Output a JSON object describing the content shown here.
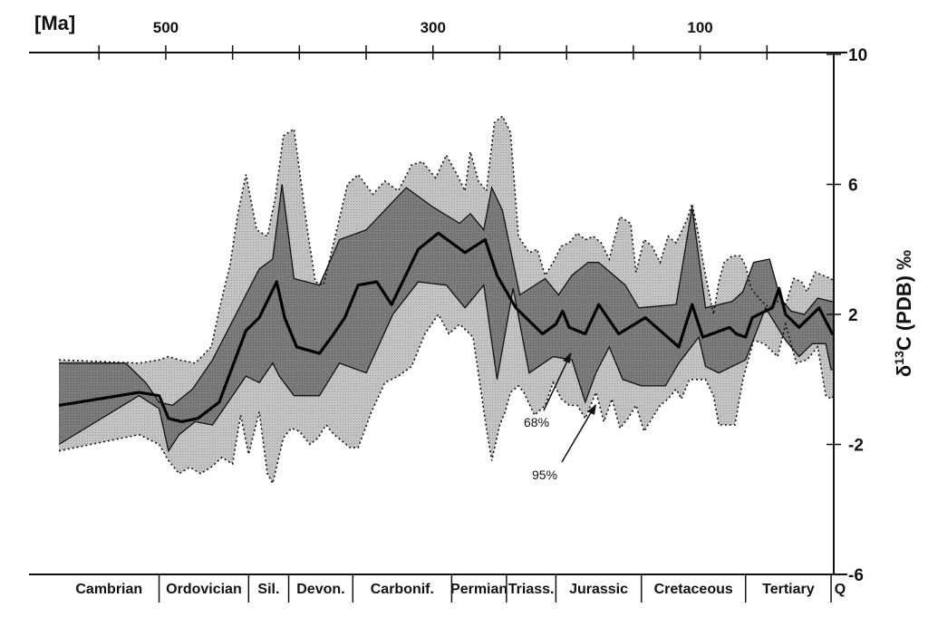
{
  "chart_data": {
    "type": "area",
    "top_axis": {
      "unit_label": "[Ma]",
      "ticks": [
        "500",
        "300",
        "100"
      ],
      "tick_values": [
        500,
        300,
        100
      ],
      "xlim": [
        580,
        0
      ]
    },
    "ylabel": "δ13C (PDB) ‰",
    "ylabel_parts": {
      "delta": "δ",
      "sup": "13",
      "rest": "C (PDB) ‰"
    },
    "y_ticks": [
      "10",
      "6",
      "2",
      "-2",
      "-6"
    ],
    "y_tick_values": [
      10,
      6,
      2,
      -2,
      -6
    ],
    "ylim": [
      -6,
      10
    ],
    "grid": false,
    "periods": [
      {
        "label": "Cambrian",
        "start": 580,
        "end": 505
      },
      {
        "label": "Ordovician",
        "start": 505,
        "end": 438
      },
      {
        "label": "Sil.",
        "start": 438,
        "end": 408
      },
      {
        "label": "Devon.",
        "start": 408,
        "end": 360
      },
      {
        "label": "Carbonif.",
        "start": 360,
        "end": 286
      },
      {
        "label": "Permian",
        "start": 286,
        "end": 245
      },
      {
        "label": "Triass.",
        "start": 245,
        "end": 208
      },
      {
        "label": "Jurassic",
        "start": 208,
        "end": 144
      },
      {
        "label": "Cretaceous",
        "start": 144,
        "end": 66
      },
      {
        "label": "Tertiary",
        "start": 66,
        "end": 2
      },
      {
        "label": "Q",
        "start": 2,
        "end": 0
      }
    ],
    "annotations": [
      {
        "text": "68%",
        "x": 222,
        "y": -1.0
      },
      {
        "text": "95%",
        "x": 210,
        "y": -2.0
      }
    ],
    "series": [
      {
        "x": [
          580,
          520,
          505,
          498,
          488,
          476,
          460,
          440,
          430,
          417,
          411,
          402,
          385,
          376,
          366,
          356,
          342,
          331,
          311,
          296,
          276,
          261,
          252,
          238,
          218,
          208,
          203,
          198,
          186,
          176,
          161,
          141,
          116,
          106,
          98,
          78,
          73,
          66,
          61,
          46,
          41,
          36,
          26,
          21,
          11,
          1,
          0
        ],
        "values": [
          -0.8,
          -0.4,
          -0.5,
          -1.2,
          -1.3,
          -1.2,
          -0.7,
          1.5,
          1.9,
          3.0,
          1.9,
          1.0,
          0.8,
          1.3,
          1.9,
          2.9,
          3.0,
          2.3,
          4.0,
          4.5,
          3.9,
          4.3,
          3.2,
          2.2,
          1.4,
          1.7,
          2.1,
          1.6,
          1.4,
          2.3,
          1.4,
          1.9,
          1.0,
          2.3,
          1.3,
          1.6,
          1.4,
          1.3,
          1.9,
          2.2,
          2.8,
          2.0,
          1.6,
          1.8,
          2.2,
          1.4,
          1.4
        ]
      },
      {
        "x": [
          580,
          530,
          515,
          505,
          495,
          480,
          465,
          445,
          430,
          420,
          413,
          404,
          385,
          370,
          350,
          320,
          300,
          280,
          272,
          262,
          256,
          248,
          235,
          216,
          206,
          196,
          184,
          176,
          156,
          146,
          118,
          106,
          96,
          76,
          68,
          60,
          48,
          40,
          32,
          22,
          12,
          2,
          0
        ],
        "values": [
          0.5,
          0.5,
          -0.1,
          -0.7,
          -0.8,
          -0.3,
          0.6,
          2.2,
          3.4,
          3.7,
          6.0,
          3.1,
          2.9,
          4.3,
          4.6,
          5.9,
          5.3,
          4.8,
          5.1,
          4.6,
          5.9,
          5.2,
          2.6,
          3.1,
          2.6,
          3.2,
          3.6,
          3.6,
          2.9,
          2.2,
          2.3,
          5.3,
          2.2,
          2.4,
          2.7,
          3.6,
          3.7,
          2.5,
          2.1,
          2.0,
          2.5,
          2.4,
          2.4
        ]
      },
      {
        "x": [
          580,
          520,
          505,
          498,
          490,
          478,
          465,
          450,
          440,
          430,
          420,
          415,
          404,
          385,
          370,
          350,
          330,
          311,
          290,
          276,
          262,
          252,
          240,
          228,
          210,
          196,
          186,
          178,
          168,
          158,
          144,
          126,
          116,
          101,
          96,
          86,
          66,
          51,
          36,
          26,
          16,
          6,
          2,
          0
        ],
        "values": [
          -2.0,
          -0.5,
          -0.9,
          -2.2,
          -1.7,
          -1.3,
          -1.4,
          -0.5,
          0.1,
          -0.1,
          0.5,
          0.1,
          -0.5,
          -0.5,
          0.5,
          0.2,
          2.0,
          3.0,
          2.9,
          2.2,
          2.9,
          0.0,
          2.8,
          0.2,
          0.7,
          0.6,
          -0.7,
          0.2,
          1.0,
          0.0,
          -0.2,
          -0.2,
          0.5,
          1.3,
          0.4,
          0.2,
          0.6,
          2.2,
          1.2,
          0.7,
          1.1,
          1.1,
          0.3,
          0.3
        ]
      },
      {
        "x": [
          580,
          520,
          505,
          498,
          490,
          478,
          466,
          458,
          452,
          446,
          440,
          432,
          424,
          418,
          412,
          404,
          394,
          388,
          382,
          372,
          364,
          356,
          345,
          336,
          326,
          316,
          308,
          298,
          290,
          282,
          276,
          272,
          266,
          260,
          254,
          248,
          242,
          236,
          228,
          222,
          216,
          210,
          204,
          198,
          192,
          186,
          180,
          174,
          168,
          160,
          152,
          148,
          142,
          136,
          130,
          124,
          118,
          110,
          106,
          102,
          96,
          90,
          86,
          82,
          76,
          70,
          66,
          62,
          54,
          48,
          42,
          36,
          30,
          24,
          20,
          14,
          8,
          2,
          0
        ],
        "values": [
          0.6,
          0.5,
          0.6,
          0.7,
          0.6,
          0.5,
          1.0,
          2.5,
          3.5,
          5.1,
          6.3,
          4.6,
          4.4,
          5.6,
          7.5,
          7.7,
          4.6,
          3.0,
          2.9,
          4.6,
          6.0,
          6.3,
          5.7,
          6.1,
          5.8,
          6.6,
          6.7,
          6.2,
          6.9,
          6.3,
          5.8,
          7.0,
          6.1,
          5.8,
          7.9,
          8.1,
          7.6,
          4.4,
          3.9,
          4.0,
          3.2,
          3.6,
          4.1,
          4.2,
          4.5,
          4.3,
          4.4,
          4.2,
          3.7,
          5.0,
          4.8,
          3.3,
          4.3,
          4.1,
          3.6,
          4.4,
          4.2,
          4.9,
          5.4,
          4.6,
          3.2,
          2.0,
          3.0,
          3.6,
          3.8,
          3.8,
          3.5,
          2.8,
          2.4,
          2.2,
          2.4,
          2.3,
          3.1,
          3.0,
          2.7,
          3.3,
          3.2,
          3.1,
          3.0
        ]
      },
      {
        "x": [
          580,
          520,
          505,
          498,
          490,
          482,
          474,
          466,
          458,
          450,
          444,
          438,
          430,
          424,
          420,
          412,
          406,
          400,
          392,
          386,
          380,
          374,
          368,
          362,
          356,
          346,
          336,
          326,
          316,
          306,
          296,
          288,
          280,
          270,
          260,
          256,
          250,
          246,
          242,
          236,
          232,
          224,
          216,
          210,
          204,
          198,
          192,
          186,
          178,
          172,
          166,
          160,
          154,
          148,
          142,
          136,
          130,
          124,
          118,
          114,
          108,
          102,
          96,
          90,
          86,
          80,
          74,
          68,
          60,
          52,
          42,
          36,
          28,
          20,
          12,
          6,
          2,
          0
        ],
        "values": [
          -2.2,
          -1.7,
          -2.0,
          -2.5,
          -2.9,
          -2.7,
          -2.9,
          -2.7,
          -2.4,
          -2.6,
          -1.1,
          -2.3,
          -1.0,
          -2.9,
          -3.2,
          -1.8,
          -1.5,
          -1.6,
          -2.0,
          -1.8,
          -1.4,
          -1.7,
          -1.9,
          -2.1,
          -2.1,
          -1.0,
          -0.1,
          0.1,
          0.4,
          1.4,
          2.0,
          1.4,
          1.7,
          1.3,
          -1.5,
          -2.5,
          -1.4,
          -1.0,
          -0.4,
          -0.2,
          -0.4,
          -1.1,
          -0.8,
          -0.1,
          -0.6,
          -0.8,
          -0.8,
          -1.2,
          -0.4,
          -1.3,
          -0.6,
          -1.5,
          -1.2,
          -0.8,
          -1.6,
          -1.2,
          -0.8,
          -0.6,
          -0.3,
          -0.6,
          0.0,
          0.0,
          0.0,
          -0.5,
          -1.4,
          -1.4,
          -1.4,
          0.0,
          1.2,
          1.1,
          0.7,
          1.7,
          0.5,
          0.6,
          1.0,
          -0.5,
          -0.6,
          -0.5
        ]
      }
    ]
  }
}
